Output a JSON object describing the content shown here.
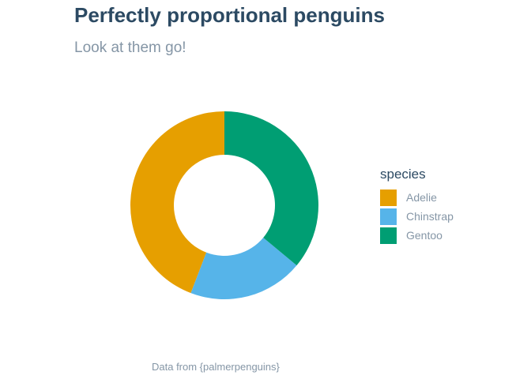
{
  "chart_data": {
    "type": "pie",
    "title": "Perfectly proportional penguins",
    "subtitle": "Look at them go!",
    "caption": "Data from {palmerpenguins}",
    "legend_title": "species",
    "legend_position": "right",
    "donut": true,
    "categories": [
      "Adelie",
      "Chinstrap",
      "Gentoo"
    ],
    "values": [
      152,
      68,
      124
    ],
    "colors": [
      "#E69F00",
      "#56B4E9",
      "#009E73"
    ]
  }
}
